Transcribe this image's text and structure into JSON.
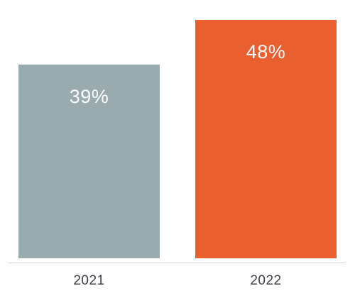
{
  "chart_data": {
    "type": "bar",
    "title": "",
    "xlabel": "",
    "ylabel": "",
    "categories": [
      "2021",
      "2022"
    ],
    "values": [
      39,
      48
    ],
    "value_labels": [
      "39%",
      "48%"
    ],
    "unit": "%",
    "ylim": [
      0,
      52
    ],
    "grid": false,
    "legend": "none",
    "colors": [
      "#9aabb0",
      "#e95f2f"
    ]
  }
}
